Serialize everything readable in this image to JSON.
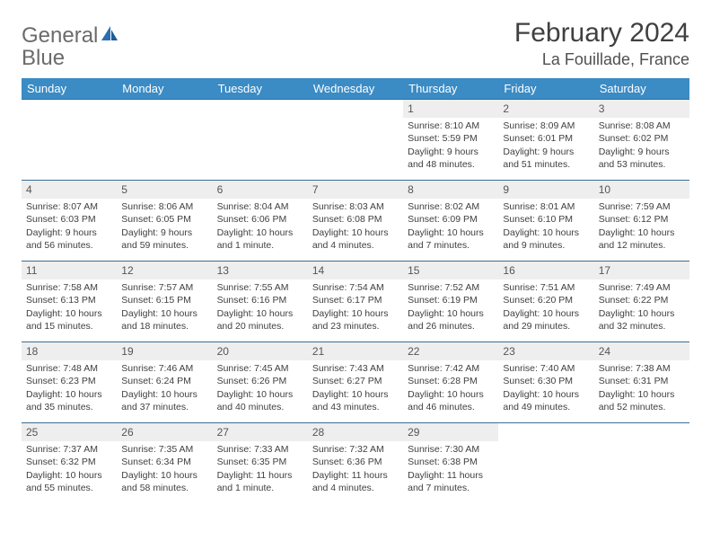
{
  "brand": {
    "part1": "General",
    "part2": "Blue"
  },
  "title": "February 2024",
  "location": "La Fouillade, France",
  "colors": {
    "header_bg": "#3b8bc4",
    "header_text": "#ffffff",
    "daynum_bg": "#eeeeee",
    "border": "#3b6e96",
    "logo_accent": "#2b6fb0"
  },
  "day_headers": [
    "Sunday",
    "Monday",
    "Tuesday",
    "Wednesday",
    "Thursday",
    "Friday",
    "Saturday"
  ],
  "weeks": [
    [
      {
        "day": "",
        "sunrise": "",
        "sunset": "",
        "daylight": ""
      },
      {
        "day": "",
        "sunrise": "",
        "sunset": "",
        "daylight": ""
      },
      {
        "day": "",
        "sunrise": "",
        "sunset": "",
        "daylight": ""
      },
      {
        "day": "",
        "sunrise": "",
        "sunset": "",
        "daylight": ""
      },
      {
        "day": "1",
        "sunrise": "Sunrise: 8:10 AM",
        "sunset": "Sunset: 5:59 PM",
        "daylight": "Daylight: 9 hours and 48 minutes."
      },
      {
        "day": "2",
        "sunrise": "Sunrise: 8:09 AM",
        "sunset": "Sunset: 6:01 PM",
        "daylight": "Daylight: 9 hours and 51 minutes."
      },
      {
        "day": "3",
        "sunrise": "Sunrise: 8:08 AM",
        "sunset": "Sunset: 6:02 PM",
        "daylight": "Daylight: 9 hours and 53 minutes."
      }
    ],
    [
      {
        "day": "4",
        "sunrise": "Sunrise: 8:07 AM",
        "sunset": "Sunset: 6:03 PM",
        "daylight": "Daylight: 9 hours and 56 minutes."
      },
      {
        "day": "5",
        "sunrise": "Sunrise: 8:06 AM",
        "sunset": "Sunset: 6:05 PM",
        "daylight": "Daylight: 9 hours and 59 minutes."
      },
      {
        "day": "6",
        "sunrise": "Sunrise: 8:04 AM",
        "sunset": "Sunset: 6:06 PM",
        "daylight": "Daylight: 10 hours and 1 minute."
      },
      {
        "day": "7",
        "sunrise": "Sunrise: 8:03 AM",
        "sunset": "Sunset: 6:08 PM",
        "daylight": "Daylight: 10 hours and 4 minutes."
      },
      {
        "day": "8",
        "sunrise": "Sunrise: 8:02 AM",
        "sunset": "Sunset: 6:09 PM",
        "daylight": "Daylight: 10 hours and 7 minutes."
      },
      {
        "day": "9",
        "sunrise": "Sunrise: 8:01 AM",
        "sunset": "Sunset: 6:10 PM",
        "daylight": "Daylight: 10 hours and 9 minutes."
      },
      {
        "day": "10",
        "sunrise": "Sunrise: 7:59 AM",
        "sunset": "Sunset: 6:12 PM",
        "daylight": "Daylight: 10 hours and 12 minutes."
      }
    ],
    [
      {
        "day": "11",
        "sunrise": "Sunrise: 7:58 AM",
        "sunset": "Sunset: 6:13 PM",
        "daylight": "Daylight: 10 hours and 15 minutes."
      },
      {
        "day": "12",
        "sunrise": "Sunrise: 7:57 AM",
        "sunset": "Sunset: 6:15 PM",
        "daylight": "Daylight: 10 hours and 18 minutes."
      },
      {
        "day": "13",
        "sunrise": "Sunrise: 7:55 AM",
        "sunset": "Sunset: 6:16 PM",
        "daylight": "Daylight: 10 hours and 20 minutes."
      },
      {
        "day": "14",
        "sunrise": "Sunrise: 7:54 AM",
        "sunset": "Sunset: 6:17 PM",
        "daylight": "Daylight: 10 hours and 23 minutes."
      },
      {
        "day": "15",
        "sunrise": "Sunrise: 7:52 AM",
        "sunset": "Sunset: 6:19 PM",
        "daylight": "Daylight: 10 hours and 26 minutes."
      },
      {
        "day": "16",
        "sunrise": "Sunrise: 7:51 AM",
        "sunset": "Sunset: 6:20 PM",
        "daylight": "Daylight: 10 hours and 29 minutes."
      },
      {
        "day": "17",
        "sunrise": "Sunrise: 7:49 AM",
        "sunset": "Sunset: 6:22 PM",
        "daylight": "Daylight: 10 hours and 32 minutes."
      }
    ],
    [
      {
        "day": "18",
        "sunrise": "Sunrise: 7:48 AM",
        "sunset": "Sunset: 6:23 PM",
        "daylight": "Daylight: 10 hours and 35 minutes."
      },
      {
        "day": "19",
        "sunrise": "Sunrise: 7:46 AM",
        "sunset": "Sunset: 6:24 PM",
        "daylight": "Daylight: 10 hours and 37 minutes."
      },
      {
        "day": "20",
        "sunrise": "Sunrise: 7:45 AM",
        "sunset": "Sunset: 6:26 PM",
        "daylight": "Daylight: 10 hours and 40 minutes."
      },
      {
        "day": "21",
        "sunrise": "Sunrise: 7:43 AM",
        "sunset": "Sunset: 6:27 PM",
        "daylight": "Daylight: 10 hours and 43 minutes."
      },
      {
        "day": "22",
        "sunrise": "Sunrise: 7:42 AM",
        "sunset": "Sunset: 6:28 PM",
        "daylight": "Daylight: 10 hours and 46 minutes."
      },
      {
        "day": "23",
        "sunrise": "Sunrise: 7:40 AM",
        "sunset": "Sunset: 6:30 PM",
        "daylight": "Daylight: 10 hours and 49 minutes."
      },
      {
        "day": "24",
        "sunrise": "Sunrise: 7:38 AM",
        "sunset": "Sunset: 6:31 PM",
        "daylight": "Daylight: 10 hours and 52 minutes."
      }
    ],
    [
      {
        "day": "25",
        "sunrise": "Sunrise: 7:37 AM",
        "sunset": "Sunset: 6:32 PM",
        "daylight": "Daylight: 10 hours and 55 minutes."
      },
      {
        "day": "26",
        "sunrise": "Sunrise: 7:35 AM",
        "sunset": "Sunset: 6:34 PM",
        "daylight": "Daylight: 10 hours and 58 minutes."
      },
      {
        "day": "27",
        "sunrise": "Sunrise: 7:33 AM",
        "sunset": "Sunset: 6:35 PM",
        "daylight": "Daylight: 11 hours and 1 minute."
      },
      {
        "day": "28",
        "sunrise": "Sunrise: 7:32 AM",
        "sunset": "Sunset: 6:36 PM",
        "daylight": "Daylight: 11 hours and 4 minutes."
      },
      {
        "day": "29",
        "sunrise": "Sunrise: 7:30 AM",
        "sunset": "Sunset: 6:38 PM",
        "daylight": "Daylight: 11 hours and 7 minutes."
      },
      {
        "day": "",
        "sunrise": "",
        "sunset": "",
        "daylight": ""
      },
      {
        "day": "",
        "sunrise": "",
        "sunset": "",
        "daylight": ""
      }
    ]
  ]
}
